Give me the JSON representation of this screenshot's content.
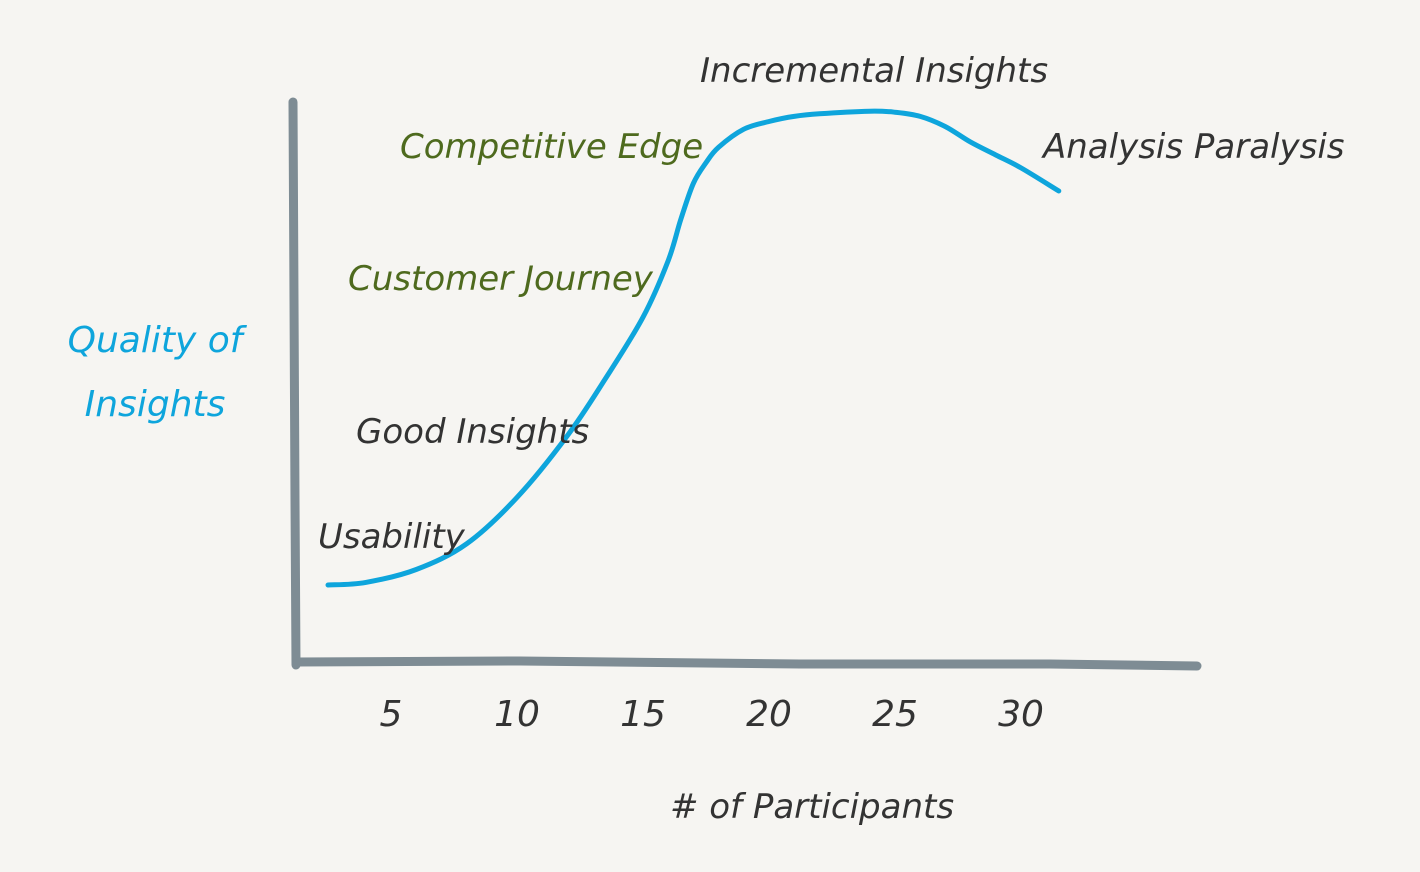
{
  "chart_data": {
    "type": "line",
    "title": "",
    "xlabel": "# of Participants",
    "ylabel": "Quality of Insights",
    "ylabel_lines": [
      "Quality of",
      "Insights"
    ],
    "x_ticks": [
      "5",
      "10",
      "15",
      "20",
      "25",
      "30"
    ],
    "xlim": [
      0,
      35
    ],
    "ylim": [
      0,
      10
    ],
    "grid": false,
    "legend": "none",
    "series": [
      {
        "color": "#0ea5dc",
        "x": [
          2.5,
          4,
          6,
          8,
          10,
          12,
          13.5,
          15,
          16,
          16.5,
          17,
          17.5,
          18,
          19,
          20,
          21,
          22,
          24,
          25,
          26,
          27,
          28,
          29,
          30,
          31.5
        ],
        "y": [
          1.0,
          1.05,
          1.3,
          1.8,
          2.7,
          3.9,
          5.0,
          6.2,
          7.3,
          8.1,
          8.8,
          9.2,
          9.5,
          9.85,
          10.0,
          10.1,
          10.15,
          10.2,
          10.18,
          10.1,
          9.9,
          9.6,
          9.35,
          9.1,
          8.65
        ]
      }
    ],
    "annotations": [
      {
        "text": "Usability",
        "style": "dark"
      },
      {
        "text": "Good Insights",
        "style": "dark"
      },
      {
        "text": "Customer Journey",
        "style": "green"
      },
      {
        "text": "Competitive Edge",
        "style": "green"
      },
      {
        "text": "Incremental Insights",
        "style": "dark"
      },
      {
        "text": "Analysis Paralysis",
        "style": "dark"
      }
    ]
  },
  "colors": {
    "axis": "#7e8c94",
    "curve": "#0ea5dc",
    "dark_text": "#333333",
    "green_text": "#4e6a1e",
    "blue_text": "#0ea5dc",
    "background": "#f6f5f2"
  }
}
